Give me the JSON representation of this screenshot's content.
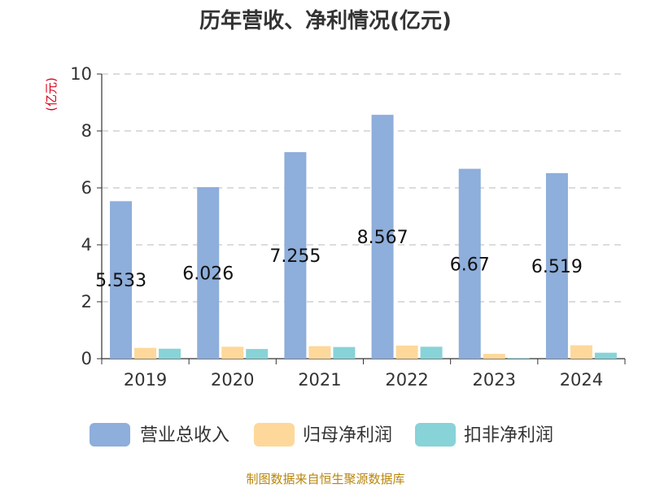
{
  "chart_data": {
    "type": "bar",
    "title": "历年营收、净利情况(亿元)",
    "yunit": "(亿元)",
    "categories": [
      "2019",
      "2020",
      "2021",
      "2022",
      "2023",
      "2024"
    ],
    "ylim": [
      0,
      10
    ],
    "yticks": [
      0,
      2,
      4,
      6,
      8,
      10
    ],
    "grid": true,
    "legend_position": "bottom",
    "series": [
      {
        "name": "营业总收入",
        "color": "#8eaedb",
        "values": [
          5.533,
          6.026,
          7.255,
          8.567,
          6.67,
          6.519
        ],
        "labels": [
          "5.533",
          "6.026",
          "7.255",
          "8.567",
          "6.67",
          "6.519"
        ]
      },
      {
        "name": "归母净利润",
        "color": "#fdd89a",
        "values": [
          0.38,
          0.42,
          0.44,
          0.46,
          0.17,
          0.47
        ]
      },
      {
        "name": "扣非净利润",
        "color": "#87d3d7",
        "values": [
          0.35,
          0.34,
          0.41,
          0.42,
          0.02,
          0.21
        ]
      }
    ],
    "source": "制图数据来自恒生聚源数据库"
  }
}
